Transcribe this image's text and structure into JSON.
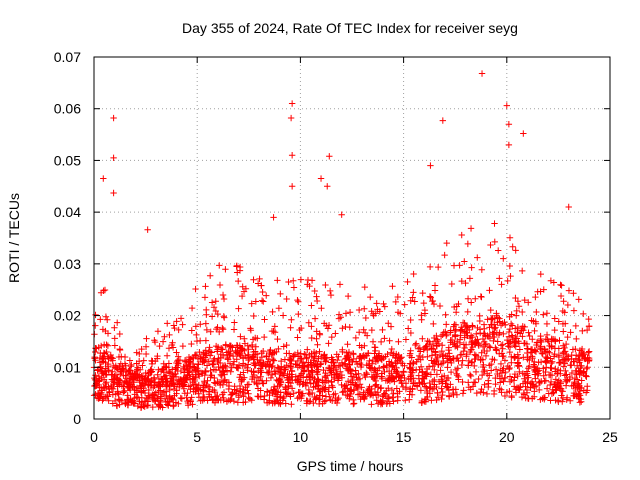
{
  "chart_data": {
    "type": "scatter",
    "title": "Day 355 of 2024, Rate Of TEC Index for receiver seyg",
    "xlabel": "GPS time / hours",
    "ylabel": "ROTI / TECUs",
    "xlim": [
      0,
      25
    ],
    "ylim": [
      0,
      0.07
    ],
    "xticks": [
      0,
      5,
      10,
      15,
      20,
      25
    ],
    "yticks": [
      0,
      0.01,
      0.02,
      0.03,
      0.04,
      0.05,
      0.06,
      0.07
    ],
    "xtick_labels": [
      "0",
      "5",
      "10",
      "15",
      "20",
      "25"
    ],
    "ytick_labels": [
      "0",
      "0.01",
      "0.02",
      "0.03",
      "0.04",
      "0.05",
      "0.06",
      "0.07"
    ],
    "grid": true,
    "marker": "plus",
    "color": "#ff0000",
    "data_x_range": [
      0,
      24
    ],
    "envelope": {
      "hours": [
        0,
        0.5,
        1,
        1.5,
        2,
        3,
        4,
        5,
        6,
        7,
        8,
        9,
        10,
        11,
        12,
        13,
        14,
        15,
        16,
        17,
        18,
        19,
        20,
        21,
        22,
        23,
        24
      ],
      "typical": [
        0.008,
        0.009,
        0.007,
        0.006,
        0.006,
        0.006,
        0.007,
        0.008,
        0.009,
        0.009,
        0.009,
        0.008,
        0.008,
        0.008,
        0.008,
        0.008,
        0.008,
        0.008,
        0.009,
        0.011,
        0.012,
        0.013,
        0.012,
        0.011,
        0.01,
        0.009,
        0.008
      ],
      "upper": [
        0.024,
        0.026,
        0.022,
        0.012,
        0.013,
        0.018,
        0.02,
        0.026,
        0.03,
        0.03,
        0.029,
        0.028,
        0.028,
        0.028,
        0.026,
        0.026,
        0.025,
        0.027,
        0.03,
        0.034,
        0.036,
        0.04,
        0.036,
        0.03,
        0.028,
        0.026,
        0.022
      ]
    },
    "notable_points": [
      {
        "x": 0.45,
        "y": 0.0465
      },
      {
        "x": 0.95,
        "y": 0.0582
      },
      {
        "x": 0.95,
        "y": 0.0505
      },
      {
        "x": 0.95,
        "y": 0.0437
      },
      {
        "x": 2.6,
        "y": 0.0366
      },
      {
        "x": 9.6,
        "y": 0.061
      },
      {
        "x": 9.55,
        "y": 0.0582
      },
      {
        "x": 9.6,
        "y": 0.051
      },
      {
        "x": 9.6,
        "y": 0.045
      },
      {
        "x": 11.0,
        "y": 0.0465
      },
      {
        "x": 11.4,
        "y": 0.0508
      },
      {
        "x": 11.3,
        "y": 0.045
      },
      {
        "x": 16.3,
        "y": 0.049
      },
      {
        "x": 16.9,
        "y": 0.0577
      },
      {
        "x": 18.8,
        "y": 0.0668
      },
      {
        "x": 20.0,
        "y": 0.0606
      },
      {
        "x": 20.1,
        "y": 0.057
      },
      {
        "x": 20.1,
        "y": 0.053
      },
      {
        "x": 20.8,
        "y": 0.0552
      },
      {
        "x": 23.0,
        "y": 0.041
      },
      {
        "x": 8.7,
        "y": 0.039
      },
      {
        "x": 12.0,
        "y": 0.0395
      }
    ]
  }
}
